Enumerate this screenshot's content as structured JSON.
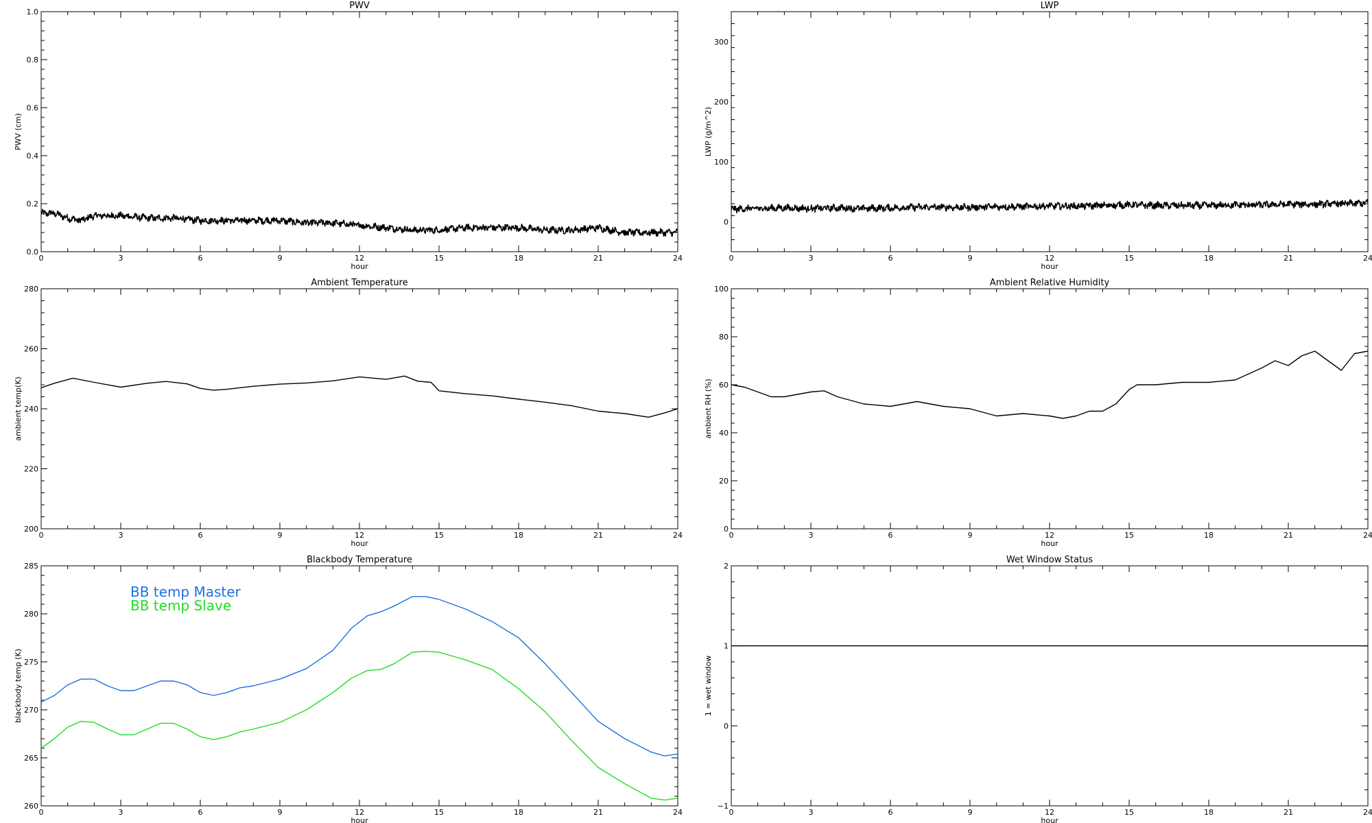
{
  "chart_data": [
    {
      "type": "line",
      "title": "PWV",
      "xlabel": "hour",
      "ylabel": "PWV (cm)",
      "xlim": [
        0,
        24
      ],
      "ylim": [
        0.0,
        1.0
      ],
      "xticks": [
        "0",
        "3",
        "6",
        "9",
        "12",
        "15",
        "18",
        "21",
        "24"
      ],
      "yticks": [
        "0.0",
        "0.2",
        "0.4",
        "0.6",
        "0.8",
        "1.0"
      ],
      "noisy": true,
      "series": [
        {
          "color": "#000000",
          "x": [
            0,
            0.5,
            1,
            1.5,
            2,
            3,
            4,
            5,
            6,
            7,
            8,
            9,
            10,
            11,
            12,
            13,
            14,
            15,
            16,
            17,
            18,
            19,
            20,
            21,
            22,
            23,
            24
          ],
          "y": [
            0.16,
            0.16,
            0.14,
            0.13,
            0.15,
            0.15,
            0.14,
            0.14,
            0.13,
            0.13,
            0.13,
            0.13,
            0.12,
            0.12,
            0.11,
            0.1,
            0.09,
            0.09,
            0.1,
            0.1,
            0.1,
            0.09,
            0.09,
            0.1,
            0.08,
            0.08,
            0.08
          ]
        }
      ]
    },
    {
      "type": "line",
      "title": "LWP",
      "xlabel": "hour",
      "ylabel": "LWP (g/m^2)",
      "xlim": [
        0,
        24
      ],
      "ylim": [
        -50,
        350
      ],
      "xticks": [
        "0",
        "3",
        "6",
        "9",
        "12",
        "15",
        "18",
        "21",
        "24"
      ],
      "yticks": [
        "0",
        "100",
        "200",
        "300"
      ],
      "noisy": true,
      "series": [
        {
          "color": "#000000",
          "x": [
            0,
            1,
            2,
            3,
            4,
            5,
            6,
            7,
            8,
            9,
            10,
            11,
            12,
            13,
            14,
            15,
            16,
            17,
            18,
            19,
            20,
            21,
            22,
            23,
            24
          ],
          "y": [
            21,
            22,
            23,
            22,
            23,
            22,
            23,
            24,
            24,
            24,
            25,
            25,
            26,
            26,
            27,
            28,
            27,
            27,
            27,
            28,
            28,
            29,
            29,
            30,
            31
          ]
        }
      ]
    },
    {
      "type": "line",
      "title": "Ambient Temperature",
      "xlabel": "hour",
      "ylabel": "ambient temp(K)",
      "xlim": [
        0,
        24
      ],
      "ylim": [
        200,
        280
      ],
      "xticks": [
        "0",
        "3",
        "6",
        "9",
        "12",
        "15",
        "18",
        "21",
        "24"
      ],
      "yticks": [
        "200",
        "220",
        "240",
        "260",
        "280"
      ],
      "noisy": false,
      "series": [
        {
          "color": "#000000",
          "x": [
            0,
            0.5,
            1.2,
            2,
            3,
            4,
            4.7,
            5.5,
            6,
            6.5,
            7,
            8,
            9,
            10,
            11,
            12,
            13,
            13.7,
            14.2,
            14.7,
            15,
            16,
            17,
            18,
            19,
            20,
            21,
            22,
            22.9,
            23.5,
            24
          ],
          "y": [
            247,
            248.5,
            250.2,
            248.8,
            247.2,
            248.5,
            249.1,
            248.3,
            246.8,
            246.2,
            246.5,
            247.5,
            248.2,
            248.6,
            249.3,
            250.6,
            249.8,
            250.9,
            249.2,
            248.8,
            246,
            245,
            244.3,
            243.2,
            242.2,
            241,
            239.2,
            238.4,
            237.2,
            238.6,
            240
          ]
        }
      ]
    },
    {
      "type": "line",
      "title": "Ambient Relative Humidity",
      "xlabel": "hour",
      "ylabel": "ambient RH (%)",
      "xlim": [
        0,
        24
      ],
      "ylim": [
        0,
        100
      ],
      "xticks": [
        "0",
        "3",
        "6",
        "9",
        "12",
        "15",
        "18",
        "21",
        "24"
      ],
      "yticks": [
        "0",
        "20",
        "40",
        "60",
        "80",
        "100"
      ],
      "noisy": false,
      "series": [
        {
          "color": "#000000",
          "x": [
            0,
            0.5,
            1,
            1.5,
            2,
            2.5,
            3,
            3.5,
            4,
            5,
            6,
            7,
            8,
            9,
            10,
            11,
            12,
            12.5,
            13,
            13.5,
            14,
            14.5,
            15,
            15.3,
            16,
            17,
            18,
            19,
            20,
            20.5,
            21,
            21.5,
            22,
            22.5,
            23,
            23.5,
            24
          ],
          "y": [
            60,
            59,
            57,
            55,
            55,
            56,
            57,
            57.5,
            55,
            52,
            51,
            53,
            51,
            50,
            47,
            48,
            47,
            46,
            47,
            49,
            49,
            52,
            58,
            60,
            60,
            61,
            61,
            62,
            67,
            70,
            68,
            72,
            74,
            70,
            66,
            73,
            74
          ]
        }
      ]
    },
    {
      "type": "line",
      "title": "Blackbody Temperature",
      "xlabel": "hour",
      "ylabel": "blackbody temp (K)",
      "xlim": [
        0,
        24
      ],
      "ylim": [
        260,
        285
      ],
      "xticks": [
        "0",
        "3",
        "6",
        "9",
        "12",
        "15",
        "18",
        "21",
        "24"
      ],
      "yticks": [
        "260",
        "265",
        "270",
        "275",
        "280",
        "285"
      ],
      "noisy": false,
      "legend": {
        "placement": "top-left"
      },
      "series": [
        {
          "name": "BB temp Master",
          "color": "#1f6fe0",
          "x": [
            0,
            0.5,
            1,
            1.5,
            2,
            2.5,
            3,
            3.5,
            4,
            4.5,
            5,
            5.5,
            6,
            6.5,
            7,
            7.5,
            8,
            9,
            10,
            11,
            11.7,
            12.3,
            12.8,
            13.3,
            14,
            14.5,
            15,
            16,
            17,
            18,
            19,
            20,
            21,
            22,
            23,
            23.5,
            24
          ],
          "y": [
            270.8,
            271.5,
            272.6,
            273.2,
            273.2,
            272.5,
            272.0,
            272.0,
            272.5,
            273.0,
            273.0,
            272.6,
            271.8,
            271.5,
            271.8,
            272.3,
            272.5,
            273.2,
            274.3,
            276.2,
            278.5,
            279.8,
            280.2,
            280.8,
            281.8,
            281.8,
            281.5,
            280.5,
            279.2,
            277.5,
            274.8,
            271.8,
            268.8,
            267,
            265.6,
            265.2,
            265.4
          ]
        },
        {
          "name": "BB temp Slave",
          "color": "#22dd22",
          "x": [
            0,
            0.5,
            1,
            1.5,
            2,
            2.5,
            3,
            3.5,
            4,
            4.5,
            5,
            5.5,
            6,
            6.5,
            7,
            7.5,
            8,
            9,
            10,
            11,
            11.7,
            12.3,
            12.8,
            13.3,
            14,
            14.5,
            15,
            16,
            17,
            18,
            19,
            20,
            21,
            22,
            23,
            23.5,
            24
          ],
          "y": [
            266,
            267,
            268.2,
            268.8,
            268.7,
            268,
            267.4,
            267.4,
            268,
            268.6,
            268.6,
            268.0,
            267.2,
            266.9,
            267.2,
            267.7,
            268.0,
            268.7,
            270.0,
            271.8,
            273.3,
            274.1,
            274.2,
            274.8,
            276.0,
            276.1,
            276.0,
            275.2,
            274.2,
            272.2,
            269.8,
            266.8,
            264.0,
            262.3,
            260.8,
            260.6,
            260.8
          ]
        }
      ]
    },
    {
      "type": "line",
      "title": "Wet Window Status",
      "xlabel": "hour",
      "ylabel": "1 = wet window",
      "xlim": [
        0,
        24
      ],
      "ylim": [
        -1,
        2
      ],
      "xticks": [
        "0",
        "3",
        "6",
        "9",
        "12",
        "15",
        "18",
        "21",
        "24"
      ],
      "yticks": [
        "−1",
        "0",
        "1",
        "2"
      ],
      "noisy": false,
      "series": [
        {
          "color": "#000000",
          "x": [
            0,
            24
          ],
          "y": [
            1,
            1
          ]
        }
      ]
    }
  ]
}
